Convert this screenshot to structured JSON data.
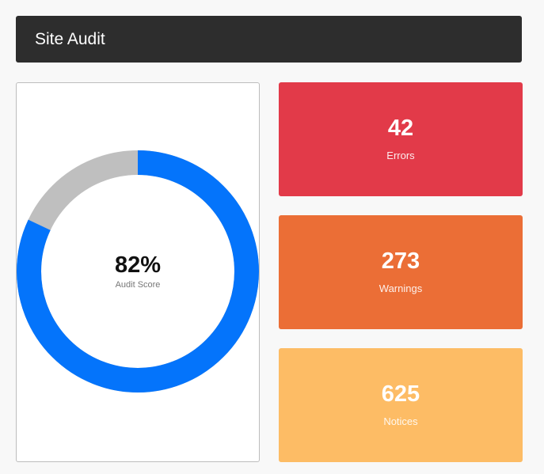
{
  "header": {
    "title": "Site Audit"
  },
  "score": {
    "value_text": "82%",
    "label": "Audit Score",
    "fraction": 0.82,
    "colors": {
      "filled": "#0474fb",
      "remaining": "#bfbfbf"
    }
  },
  "cards": [
    {
      "count": "42",
      "label": "Errors",
      "color": "#e23a49"
    },
    {
      "count": "273",
      "label": "Warnings",
      "color": "#eb6e36"
    },
    {
      "count": "625",
      "label": "Notices",
      "color": "#fdbc65"
    }
  ]
}
